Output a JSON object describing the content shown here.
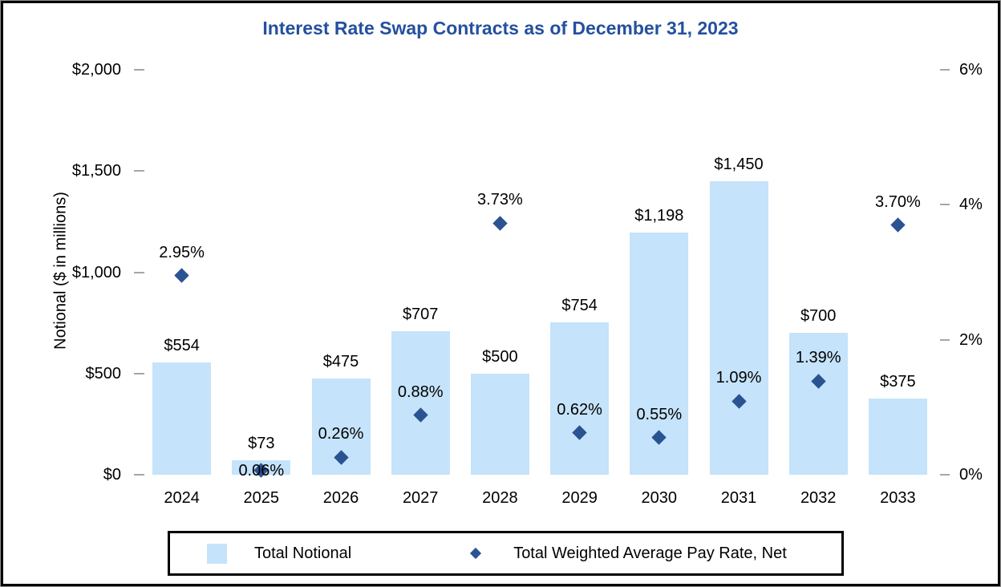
{
  "chart_data": {
    "type": "bar",
    "title": "Interest Rate Swap Contracts as of December 31, 2023",
    "categories": [
      "2024",
      "2025",
      "2026",
      "2027",
      "2028",
      "2029",
      "2030",
      "2031",
      "2032",
      "2033"
    ],
    "series": [
      {
        "name": "Total Notional",
        "type": "bar",
        "axis": "left",
        "color": "#C5E3FA",
        "values": [
          554,
          73,
          475,
          707,
          500,
          754,
          1198,
          1450,
          700,
          375
        ],
        "labels": [
          "$554",
          "$73",
          "$475",
          "$707",
          "$500",
          "$754",
          "$1,198",
          "$1,450",
          "$700",
          "$375"
        ]
      },
      {
        "name": "Total Weighted Average Pay Rate, Net",
        "type": "scatter",
        "axis": "right",
        "color": "#2A5392",
        "values": [
          2.95,
          0.06,
          0.26,
          0.88,
          3.73,
          0.62,
          0.55,
          1.09,
          1.39,
          3.7
        ],
        "labels": [
          "2.95%",
          "0.06%",
          "0.26%",
          "0.88%",
          "3.73%",
          "0.62%",
          "0.55%",
          "1.09%",
          "1.39%",
          "3.70%"
        ]
      }
    ],
    "ylabel_left": "Notional ($ in millions)",
    "left_axis": {
      "ticks": [
        "$0",
        "$500",
        "$1,000",
        "$1,500",
        "$2,000"
      ],
      "values": [
        0,
        500,
        1000,
        1500,
        2000
      ],
      "min": 0,
      "max": 2000
    },
    "right_axis": {
      "ticks": [
        "0%",
        "2%",
        "4%",
        "6%"
      ],
      "values": [
        0,
        2,
        4,
        6
      ],
      "min": 0,
      "max": 6
    },
    "grid": false,
    "legend_position": "bottom",
    "title_color": "#24509E",
    "tick_color": "#A6A6A6"
  }
}
